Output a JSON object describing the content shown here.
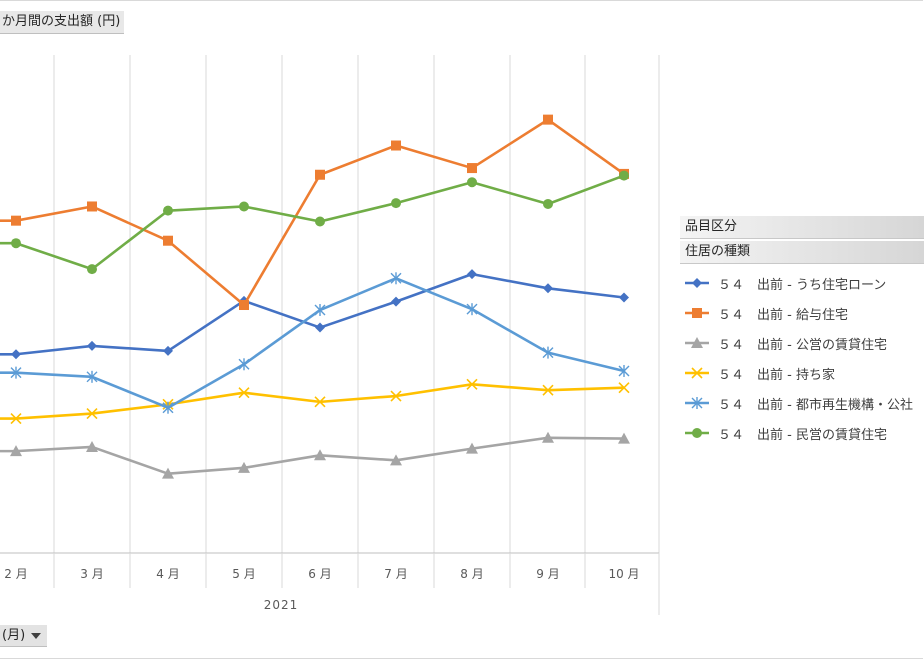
{
  "header": {
    "value_field_label": "か月間の支出額 (円)"
  },
  "filter": {
    "month_field_label": "(月)"
  },
  "legend": {
    "field_header": "品目区分",
    "sub_header": "住居の種類"
  },
  "chart_data": {
    "type": "line",
    "categories": [
      "2 月",
      "3 月",
      "4 月",
      "5 月",
      "6 月",
      "7 月",
      "8 月",
      "9 月",
      "10 月"
    ],
    "x_group_label": "2021",
    "gridlines": "vertical",
    "legend_position": "right",
    "series": [
      {
        "name": "５４　出前 - うち住宅ローン",
        "color": "#4472c4",
        "marker": "diamond",
        "values": [
          2380,
          2480,
          2420,
          3020,
          2700,
          3010,
          3340,
          3170,
          3060
        ]
      },
      {
        "name": "５４　出前 - 給与住宅",
        "color": "#ed7d31",
        "marker": "square",
        "values": [
          3980,
          4150,
          3740,
          2970,
          4530,
          4880,
          4610,
          5190,
          4540
        ]
      },
      {
        "name": "５４　出前 - 公営の賃貸住宅",
        "color": "#a5a5a5",
        "marker": "triangle",
        "values": [
          1220,
          1270,
          950,
          1020,
          1170,
          1110,
          1250,
          1380,
          1370
        ]
      },
      {
        "name": "５４　出前 - 持ち家",
        "color": "#ffc000",
        "marker": "x",
        "values": [
          1610,
          1670,
          1780,
          1920,
          1810,
          1880,
          2020,
          1950,
          1980
        ]
      },
      {
        "name": "５４　出前 - 都市再生機構・公社",
        "color": "#5b9bd5",
        "marker": "star",
        "values": [
          2160,
          2110,
          1740,
          2260,
          2910,
          3290,
          2920,
          2400,
          2180
        ]
      },
      {
        "name": "５４　出前 - 民営の賃貸住宅",
        "color": "#70ad47",
        "marker": "circle",
        "values": [
          3710,
          3400,
          4100,
          4150,
          3970,
          4190,
          4440,
          4180,
          4520
        ]
      }
    ]
  }
}
